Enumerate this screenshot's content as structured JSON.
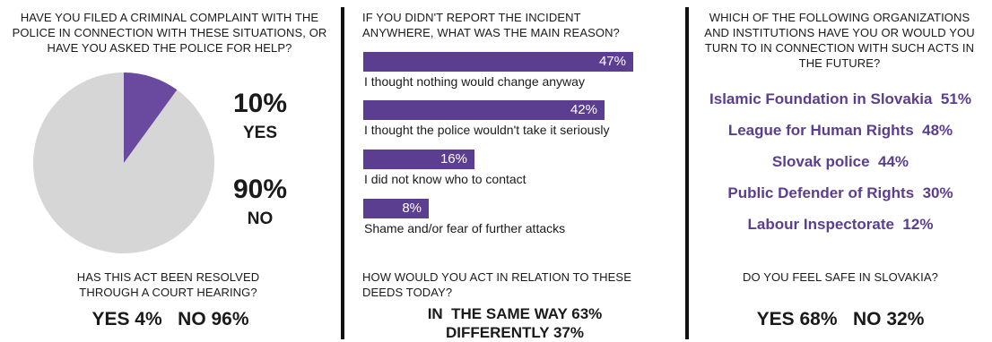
{
  "panel1": {
    "question": "HAVE YOU FILED A CRIMINAL COMPLAINT WITH THE POLICE IN CONNECTION WITH THESE SITUATIONS, OR HAVE YOU ASKED THE POLICE FOR HELP?",
    "yes_pct": "10%",
    "yes_label": "YES",
    "no_pct": "90%",
    "no_label": "NO",
    "question2": "HAS THIS ACT BEEN RESOLVED THROUGH A COURT HEARING?",
    "answer2": "YES 4%   NO 96%"
  },
  "panel2": {
    "question": "IF YOU DIDN'T REPORT THE INCIDENT ANYWHERE, WHAT WAS THE MAIN REASON?",
    "question2": "HOW WOULD YOU ACT IN RELATION TO THESE DEEDS TODAY?",
    "answer2_line1": "IN  THE SAME WAY 63%",
    "answer2_line2": "DIFFERENTLY 37%"
  },
  "panel3": {
    "question": "WHICH OF THE FOLLOWING ORGANIZATIONS AND INSTITUTIONS HAVE YOU OR WOULD YOU TURN TO IN CONNECTION WITH SUCH ACTS IN THE FUTURE?",
    "orgs": [
      "Islamic Foundation in Slovakia  51%",
      "League for Human Rights  48%",
      "Slovak police  44%",
      "Public Defender of Rights  30%",
      "Labour Inspectorate  12%"
    ],
    "question2": "DO YOU FEEL SAFE IN SLOVAKIA?",
    "answer2": "YES 68%   NO 32%"
  },
  "colors": {
    "accent": "#5b3e8f",
    "pie_rest": "#d6d6d6",
    "divider": "#111111"
  },
  "chart_data": [
    {
      "type": "pie",
      "categories": [
        "YES",
        "NO"
      ],
      "values": [
        10,
        90
      ],
      "colors": [
        "#6a4a9e",
        "#d6d6d6"
      ]
    },
    {
      "type": "bar",
      "orientation": "horizontal",
      "categories": [
        "I thought nothing would change anyway",
        "I thought the police wouldn't take it seriously",
        "I did not know who to contact",
        "Shame and/or fear of further attacks"
      ],
      "values": [
        47,
        42,
        16,
        8
      ],
      "value_labels": [
        "47%",
        "42%",
        "16%",
        "8%"
      ]
    }
  ]
}
